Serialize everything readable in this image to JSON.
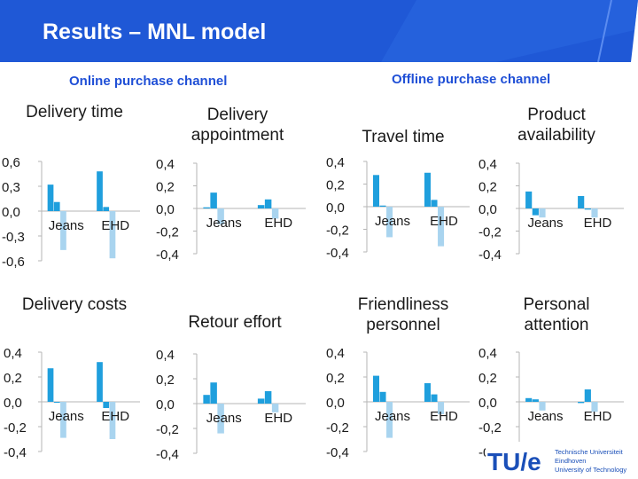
{
  "header": {
    "title": "Results – MNL model",
    "online_label": "Online purchase channel",
    "offline_label": "Offline purchase channel"
  },
  "colors": {
    "series1": "#1f9fdd",
    "series2": "#a9d4ef",
    "banner": "#1f58d6"
  },
  "logo": {
    "mark": "TU/e",
    "line1": "Technische Universiteit",
    "line2": "Eindhoven",
    "line3": "University of Technology"
  },
  "chart_data": [
    {
      "type": "bar",
      "title": "Delivery time",
      "categories": [
        "Jeans",
        "EHD"
      ],
      "ylim": [
        -0.6,
        0.6
      ],
      "ticks": [
        "0,6",
        "0,3",
        "0,0",
        "-0,3",
        "-0,6"
      ],
      "series": [
        {
          "values": [
            0.32,
            0.48
          ]
        },
        {
          "values": [
            0.11,
            0.05
          ]
        },
        {
          "values": [
            -0.47,
            -0.57
          ]
        }
      ]
    },
    {
      "type": "bar",
      "title": "Delivery appointment",
      "categories": [
        "Jeans",
        "EHD"
      ],
      "ylim": [
        -0.4,
        0.4
      ],
      "ticks": [
        "0,4",
        "0,2",
        "0,0",
        "-0,2",
        "-0,4"
      ],
      "series": [
        {
          "values": [
            0.01,
            0.03
          ]
        },
        {
          "values": [
            0.14,
            0.08
          ]
        },
        {
          "values": [
            -0.14,
            -0.09
          ]
        }
      ]
    },
    {
      "type": "bar",
      "title": "Travel time",
      "categories": [
        "Jeans",
        "EHD"
      ],
      "ylim": [
        -0.4,
        0.4
      ],
      "ticks": [
        "0,4",
        "0,2",
        "0,0",
        "-0,2",
        "-0,4"
      ],
      "series": [
        {
          "values": [
            0.28,
            0.3
          ]
        },
        {
          "values": [
            0.01,
            0.06
          ]
        },
        {
          "values": [
            -0.27,
            -0.35
          ]
        }
      ]
    },
    {
      "type": "bar",
      "title": "Product availability",
      "categories": [
        "Jeans",
        "EHD"
      ],
      "ylim": [
        -0.4,
        0.4
      ],
      "ticks": [
        "0,4",
        "0,2",
        "0,0",
        "-0,2",
        "-0,4"
      ],
      "series": [
        {
          "values": [
            0.15,
            0.11
          ]
        },
        {
          "values": [
            -0.06,
            -0.01
          ]
        },
        {
          "values": [
            -0.08,
            -0.08
          ]
        }
      ]
    },
    {
      "type": "bar",
      "title": "Delivery costs",
      "categories": [
        "Jeans",
        "EHD"
      ],
      "ylim": [
        -0.4,
        0.4
      ],
      "ticks": [
        "0,4",
        "0,2",
        "0,0",
        "-0,2",
        "-0,4"
      ],
      "series": [
        {
          "values": [
            0.27,
            0.32
          ]
        },
        {
          "values": [
            0.0,
            -0.05
          ]
        },
        {
          "values": [
            -0.29,
            -0.3
          ]
        }
      ]
    },
    {
      "type": "bar",
      "title": "Retour effort",
      "categories": [
        "Jeans",
        "EHD"
      ],
      "ylim": [
        -0.4,
        0.4
      ],
      "ticks": [
        "0,4",
        "0,2",
        "0,0",
        "-0,2",
        "-0,4"
      ],
      "series": [
        {
          "values": [
            0.07,
            0.04
          ]
        },
        {
          "values": [
            0.17,
            0.1
          ]
        },
        {
          "values": [
            -0.24,
            -0.07
          ]
        }
      ]
    },
    {
      "type": "bar",
      "title": "Friendliness personnel",
      "categories": [
        "Jeans",
        "EHD"
      ],
      "ylim": [
        -0.4,
        0.4
      ],
      "ticks": [
        "0,4",
        "0,2",
        "0,0",
        "-0,2",
        "-0,4"
      ],
      "series": [
        {
          "values": [
            0.21,
            0.15
          ]
        },
        {
          "values": [
            0.08,
            0.06
          ]
        },
        {
          "values": [
            -0.29,
            -0.1
          ]
        }
      ]
    },
    {
      "type": "bar",
      "title": "Personal attention",
      "categories": [
        "Jeans",
        "EHD"
      ],
      "ylim": [
        -0.4,
        0.4
      ],
      "ticks": [
        "0,4",
        "0,2",
        "0,0",
        "-0,2",
        "-0,4"
      ],
      "series": [
        {
          "values": [
            0.03,
            -0.01
          ]
        },
        {
          "values": [
            0.02,
            0.1
          ]
        },
        {
          "values": [
            -0.07,
            -0.08
          ]
        }
      ]
    }
  ]
}
